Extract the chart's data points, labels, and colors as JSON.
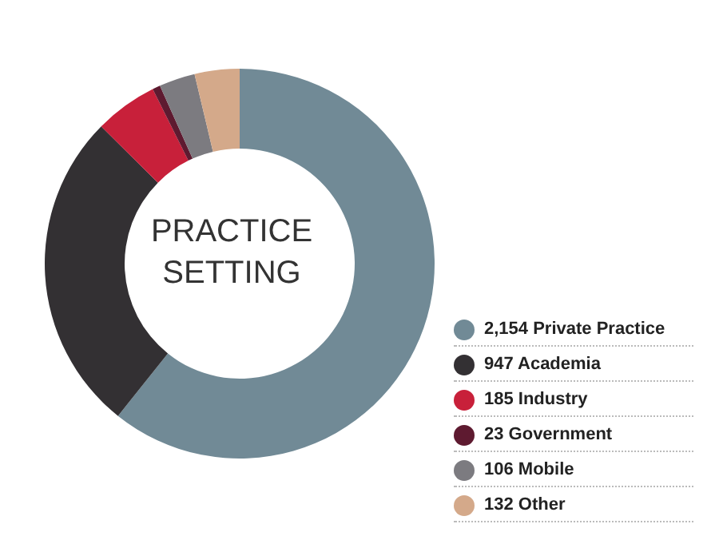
{
  "chart_data": {
    "type": "donut",
    "title": "PRACTICE SETTING",
    "categories": [
      "Private Practice",
      "Academia",
      "Industry",
      "Government",
      "Mobile",
      "Other"
    ],
    "values": [
      2154,
      947,
      185,
      23,
      106,
      132
    ],
    "value_labels": [
      "2,154",
      "947",
      "185",
      "23",
      "106",
      "132"
    ],
    "colors": [
      "#718a96",
      "#333033",
      "#c8203a",
      "#5e1a30",
      "#7c7b80",
      "#d4a98a"
    ],
    "legend": "bottom right"
  }
}
